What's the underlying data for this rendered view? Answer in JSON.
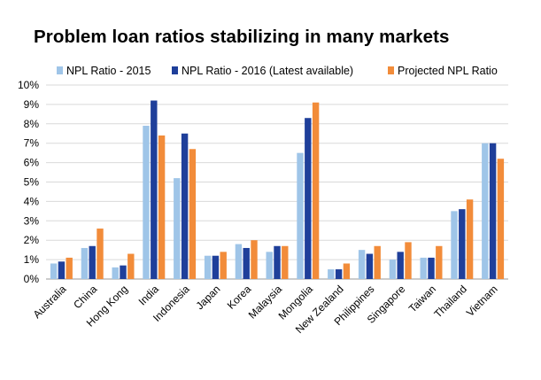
{
  "colors": {
    "npl_2015": "#9fc5e8",
    "npl_2016": "#1f3f9a",
    "projected": "#f28c3a"
  },
  "chart_data": {
    "type": "bar",
    "title": "Problem loan ratios stabilizing in many markets",
    "xlabel": "",
    "ylabel": "",
    "ylim": [
      0,
      10
    ],
    "y_ticks": [
      "0%",
      "1%",
      "2%",
      "3%",
      "4%",
      "5%",
      "6%",
      "7%",
      "8%",
      "9%",
      "10%"
    ],
    "grid": true,
    "legend_position": "top",
    "categories": [
      "Australia",
      "China",
      "Hong Kong",
      "India",
      "Indonesia",
      "Japan",
      "Korea",
      "Malaysia",
      "Mongolia",
      "New Zealand",
      "Philippines",
      "Singapore",
      "Taiwan",
      "Thailand",
      "Vietnam"
    ],
    "series": [
      {
        "name": "NPL Ratio - 2015",
        "values": [
          0.8,
          1.6,
          0.6,
          7.9,
          5.2,
          1.2,
          1.8,
          1.4,
          6.5,
          0.5,
          1.5,
          1.0,
          1.1,
          3.5,
          7.0
        ]
      },
      {
        "name": "NPL Ratio - 2016 (Latest available)",
        "values": [
          0.9,
          1.7,
          0.7,
          9.2,
          7.5,
          1.2,
          1.6,
          1.7,
          8.3,
          0.5,
          1.3,
          1.4,
          1.1,
          3.6,
          7.0
        ]
      },
      {
        "name": "Projected NPL Ratio",
        "values": [
          1.1,
          2.6,
          1.3,
          7.4,
          6.7,
          1.4,
          2.0,
          1.7,
          9.1,
          0.8,
          1.7,
          1.9,
          1.7,
          4.1,
          6.2
        ]
      }
    ]
  }
}
